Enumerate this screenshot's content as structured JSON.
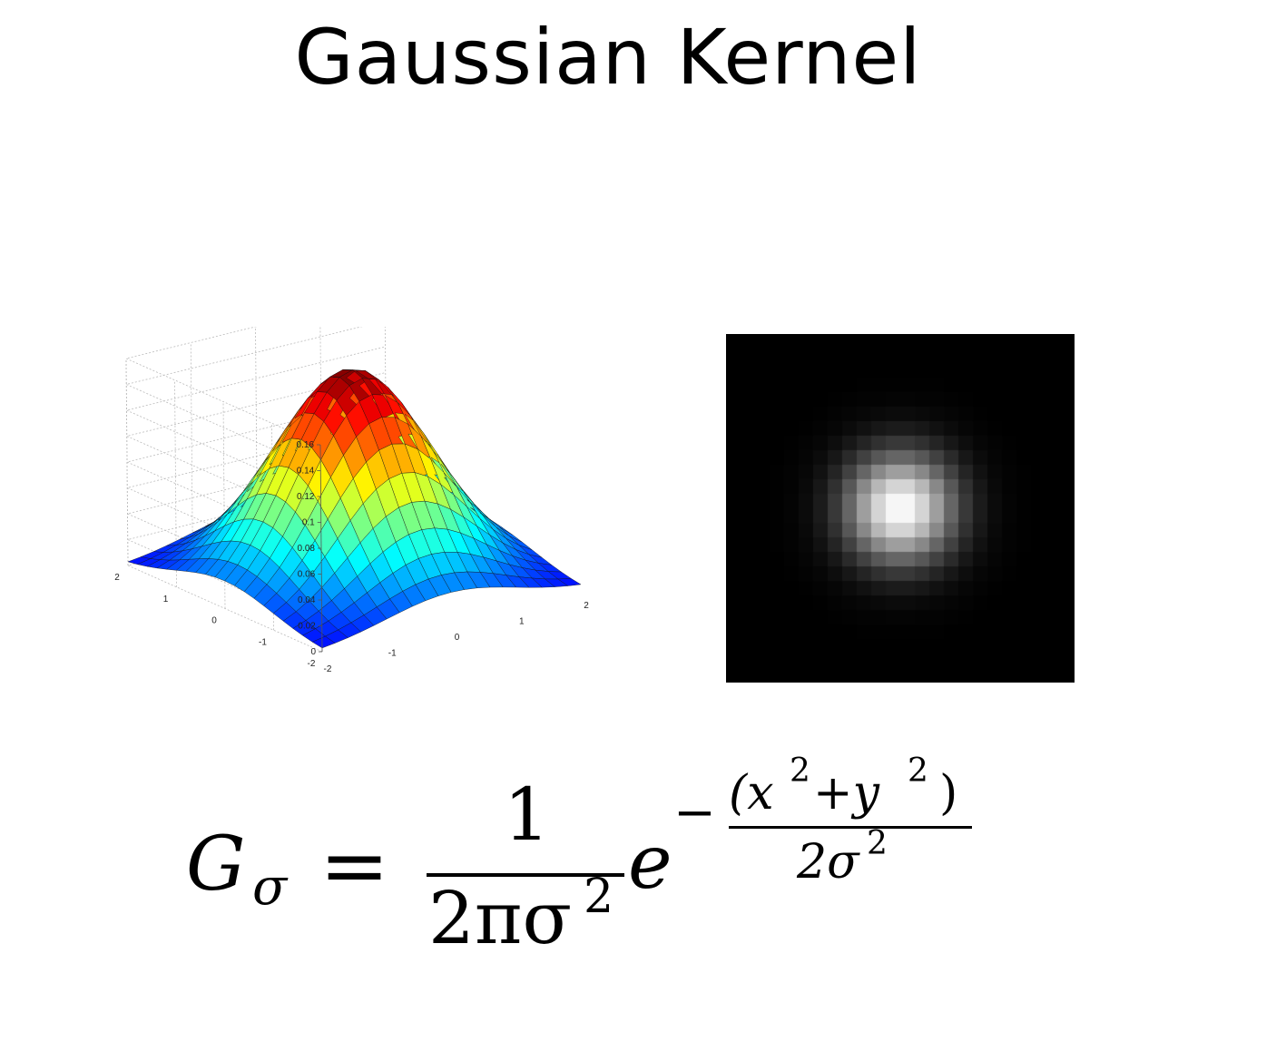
{
  "slide": {
    "title": "Gaussian Kernel"
  },
  "surface_plot": {
    "z_ticks": [
      "0",
      "0.02",
      "0.04",
      "0.06",
      "0.08",
      "0.1",
      "0.12",
      "0.14",
      "0.16"
    ],
    "x_ticks": [
      "-2",
      "-1",
      "0",
      "1",
      "2"
    ],
    "y_ticks": [
      "-2",
      "-1",
      "0",
      "1",
      "2"
    ],
    "zlim": [
      0,
      0.16
    ],
    "colormap": "jet",
    "peak": 0.16
  },
  "kernel_image": {
    "description_colors": {
      "background": "#000000",
      "peak": "#ffffff"
    }
  },
  "formula": {
    "lhs_symbol": "G",
    "lhs_subscript": "σ",
    "equals": "=",
    "numerator": "1",
    "denominator": "2πσ",
    "denominator_exp": "2",
    "base": "e",
    "exp_sign": "−",
    "exp_numerator_open": "(x",
    "exp_numerator_sup1": "2",
    "exp_numerator_plus": "+y",
    "exp_numerator_sup2": "2",
    "exp_numerator_close": ")",
    "exp_denominator": "2σ",
    "exp_denominator_sup": "2"
  }
}
